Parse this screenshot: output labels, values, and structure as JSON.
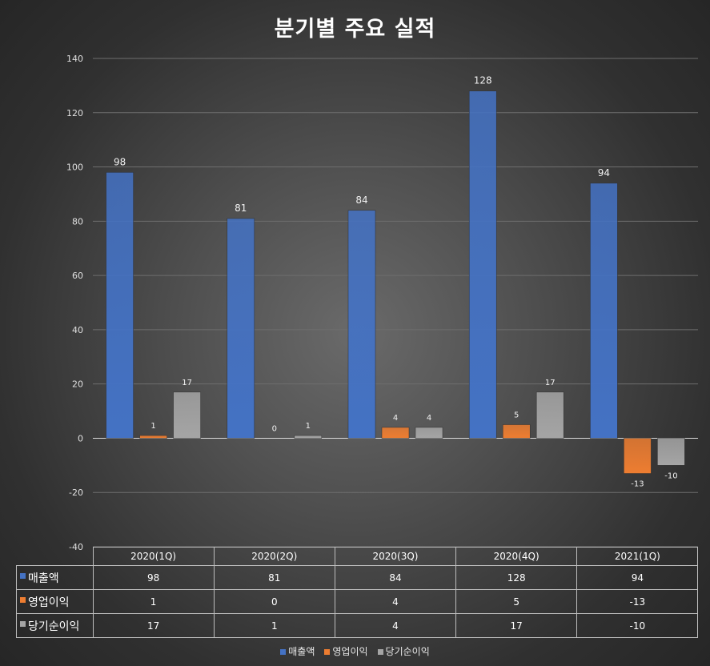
{
  "chart_data": {
    "type": "bar",
    "title": "분기별 주요 실적",
    "categories": [
      "2020(1Q)",
      "2020(2Q)",
      "2020(3Q)",
      "2020(4Q)",
      "2021(1Q)"
    ],
    "series": [
      {
        "name": "매출액",
        "values": [
          98,
          81,
          84,
          128,
          94
        ],
        "color": "#4472c4"
      },
      {
        "name": "영업이익",
        "values": [
          1,
          0,
          4,
          5,
          -13
        ],
        "color": "#ed7d31"
      },
      {
        "name": "당기순이익",
        "values": [
          17,
          1,
          4,
          17,
          -10
        ],
        "color": "#a5a5a5"
      }
    ],
    "ylim": [
      -40,
      140
    ],
    "yticks": [
      -40,
      -20,
      0,
      20,
      40,
      60,
      80,
      100,
      120,
      140
    ],
    "grid": true,
    "data_table": true,
    "legend_position": "bottom"
  }
}
